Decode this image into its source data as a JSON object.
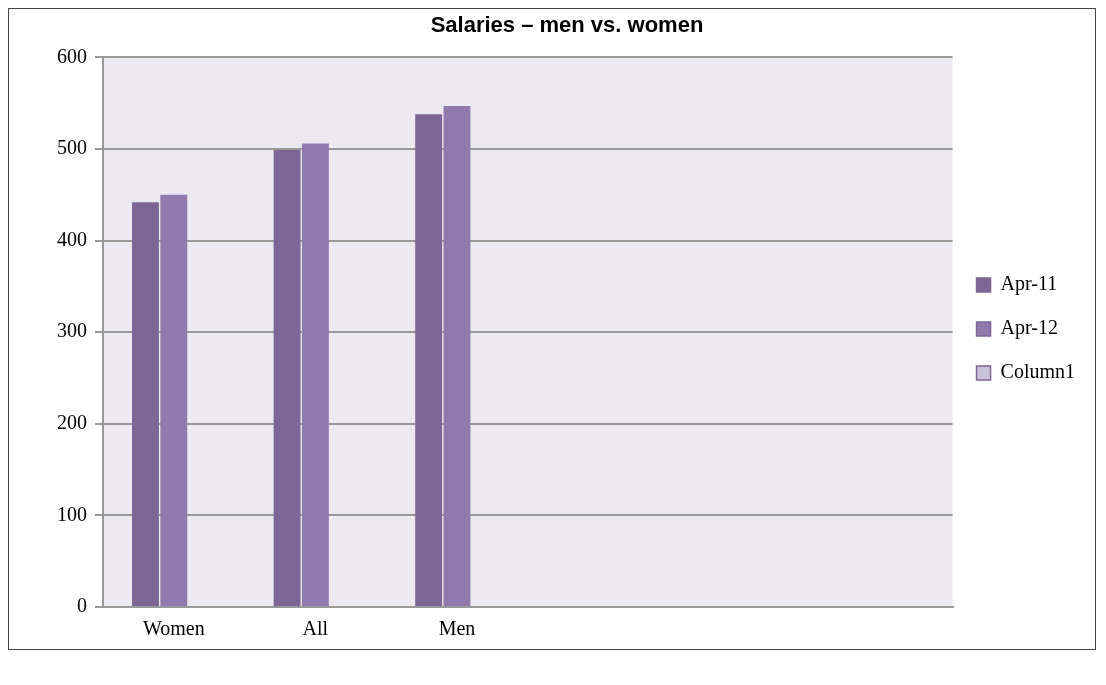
{
  "chart_data": {
    "type": "bar",
    "title": "Salaries – men vs. women",
    "categories": [
      "Women",
      "All",
      "Men",
      null,
      null,
      null
    ],
    "series": [
      {
        "name": "Apr-11",
        "color": "#7d6595",
        "values": [
          442,
          499,
          538,
          null,
          null,
          null
        ]
      },
      {
        "name": "Apr-12",
        "color": "#9079ad",
        "values": [
          450,
          506,
          547,
          null,
          null,
          null
        ]
      },
      {
        "name": "Column1",
        "color": "#ccc1da",
        "values": [
          null,
          null,
          null,
          null,
          null,
          null
        ]
      }
    ],
    "ylim": [
      0,
      600
    ],
    "yticks": [
      0,
      100,
      200,
      300,
      400,
      500,
      600
    ],
    "grid": "y",
    "legend": "right"
  }
}
